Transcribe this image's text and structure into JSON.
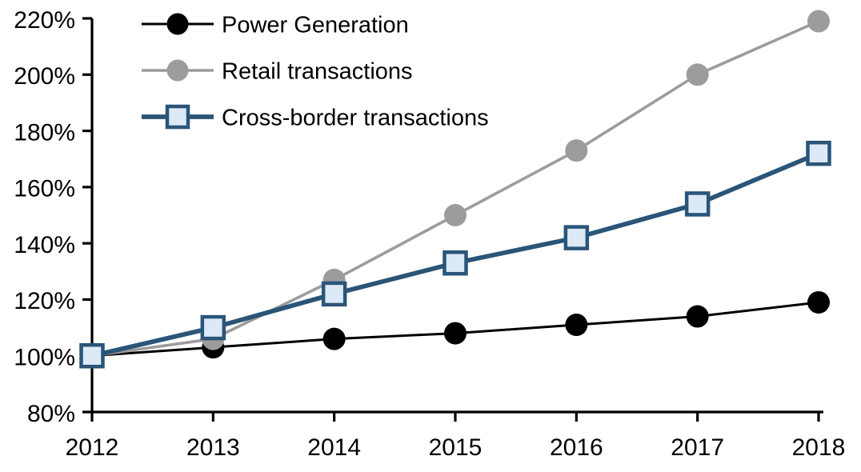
{
  "chart_data": {
    "type": "line",
    "title": "",
    "xlabel": "",
    "ylabel": "",
    "x_labels": [
      "2012",
      "2013",
      "2014",
      "2015",
      "2016",
      "2017",
      "2018"
    ],
    "y_tick_labels": [
      "80%",
      "100%",
      "120%",
      "140%",
      "160%",
      "180%",
      "200%",
      "220%"
    ],
    "ylim": [
      80,
      220
    ],
    "ytick_step": 20,
    "grid": false,
    "legend_position": "top-left",
    "axis_color": "#000000",
    "series": [
      {
        "name": "Power Generation",
        "marker": "circle",
        "color": "#000000",
        "marker_fill": "#000000",
        "line_width": 3,
        "values": [
          100,
          103,
          106,
          108,
          111,
          114,
          119
        ]
      },
      {
        "name": "Retail transactions",
        "marker": "circle",
        "color": "#9C9C9C",
        "marker_fill": "#9C9C9C",
        "line_width": 3.6,
        "values": [
          100,
          106,
          127,
          150,
          173,
          200,
          219
        ]
      },
      {
        "name": "Cross-border transactions",
        "marker": "square",
        "color": "#2A5578",
        "marker_fill": "#DCE9F6",
        "line_width": 5.7,
        "values": [
          100,
          110,
          122,
          133,
          142,
          154,
          172
        ]
      }
    ]
  }
}
